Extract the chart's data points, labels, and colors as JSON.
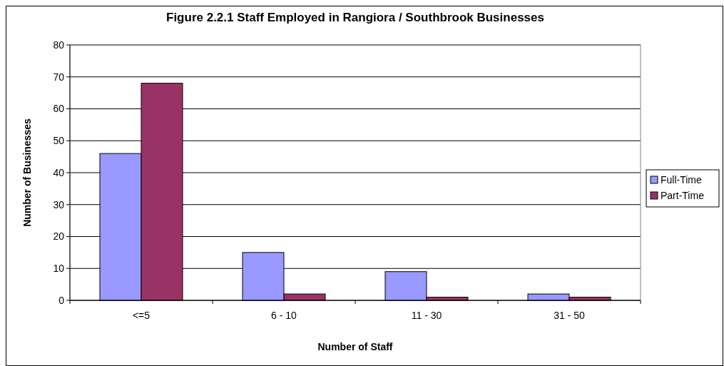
{
  "chart_data": {
    "type": "bar",
    "title": "Figure 2.2.1 Staff Employed in Rangiora / Southbrook Businesses",
    "xlabel": "Number of Staff",
    "ylabel": "Number of Businesses",
    "categories": [
      "<=5",
      "6 - 10",
      "11 - 30",
      "31 - 50"
    ],
    "series": [
      {
        "name": "Full-Time",
        "color": "#9999ff",
        "values": [
          46,
          15,
          9,
          2
        ]
      },
      {
        "name": "Part-Time",
        "color": "#993366",
        "values": [
          68,
          2,
          1,
          1
        ]
      }
    ],
    "ylim": [
      0,
      80
    ],
    "yticks": [
      0,
      10,
      20,
      30,
      40,
      50,
      60,
      70,
      80
    ],
    "grid": "y",
    "legend": "right"
  }
}
